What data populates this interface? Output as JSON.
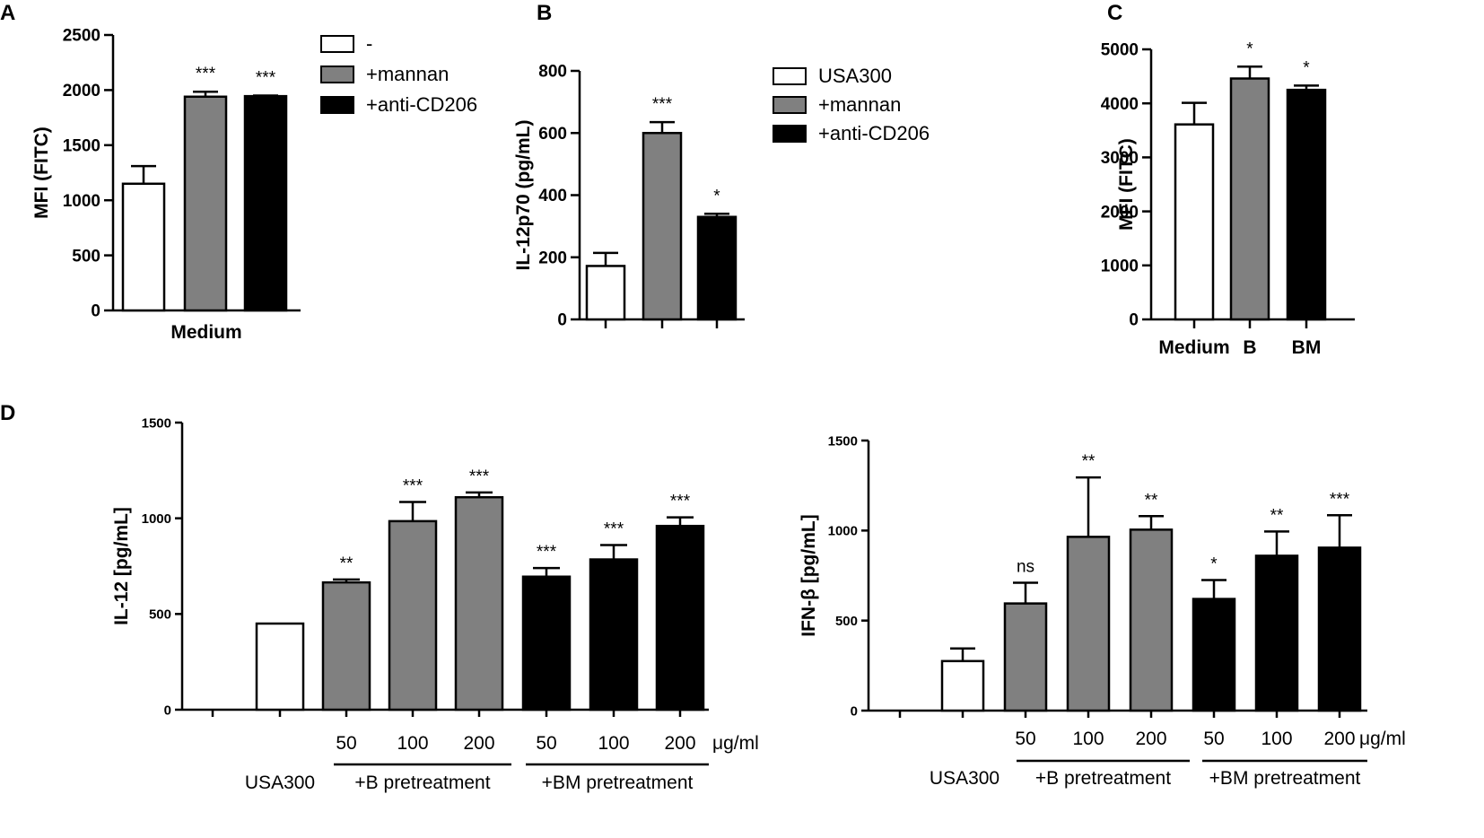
{
  "chart_data": [
    {
      "panel": "A",
      "type": "bar",
      "ylabel": "MFI (FITC)",
      "ylim": [
        0,
        2500
      ],
      "yticks": [
        0,
        500,
        1000,
        1500,
        2000,
        2500
      ],
      "categories": [
        "-",
        "+mannan",
        "+anti-CD206"
      ],
      "group_label": "Medium",
      "values": [
        1150,
        1940,
        1945
      ],
      "errors": [
        160,
        45,
        5
      ],
      "fills": [
        "#ffffff",
        "#808080",
        "#000000"
      ],
      "significance": [
        "",
        "***",
        "***"
      ],
      "legend": [
        "-",
        "+mannan",
        "+anti-CD206"
      ]
    },
    {
      "panel": "B",
      "type": "bar",
      "ylabel": "IL-12p70 (pg/mL)",
      "ylim": [
        0,
        800
      ],
      "yticks": [
        0,
        200,
        400,
        600,
        800
      ],
      "categories": [
        "USA300",
        "+mannan",
        "+anti-CD206"
      ],
      "values": [
        172,
        600,
        330
      ],
      "errors": [
        42,
        35,
        10
      ],
      "fills": [
        "#ffffff",
        "#808080",
        "#000000"
      ],
      "significance": [
        "",
        "***",
        "*"
      ],
      "legend": [
        "USA300",
        "+mannan",
        "+anti-CD206"
      ]
    },
    {
      "panel": "C",
      "type": "bar",
      "ylabel": "MFI (FITC)",
      "ylim": [
        0,
        5000
      ],
      "yticks": [
        0,
        1000,
        2000,
        3000,
        4000,
        5000
      ],
      "categories": [
        "Medium",
        "B",
        "BM"
      ],
      "values": [
        3610,
        4460,
        4250
      ],
      "errors": [
        400,
        220,
        80
      ],
      "fills": [
        "#ffffff",
        "#808080",
        "#000000"
      ],
      "significance": [
        "",
        "*",
        "*"
      ]
    },
    {
      "panel": "D-left",
      "type": "bar",
      "ylabel": "IL-12 [pg/mL]",
      "ylim": [
        0,
        1500
      ],
      "yticks": [
        0,
        500,
        1000,
        1500
      ],
      "dose_labels": [
        "",
        "",
        "50",
        "100",
        "200",
        "50",
        "100",
        "200"
      ],
      "unit": "μg/ml",
      "values": [
        0,
        450,
        665,
        985,
        1110,
        695,
        785,
        960
      ],
      "errors": [
        0,
        0,
        15,
        100,
        25,
        45,
        75,
        45
      ],
      "fills": [
        "none",
        "#ffffff",
        "#808080",
        "#808080",
        "#808080",
        "#000000",
        "#000000",
        "#000000"
      ],
      "significance": [
        "",
        "",
        "**",
        "***",
        "***",
        "***",
        "***",
        "***"
      ],
      "group_labels": [
        "USA300",
        "+B pretreatment",
        "+BM pretreatment"
      ]
    },
    {
      "panel": "D-right",
      "type": "bar",
      "ylabel": "IFN-β [pg/mL]",
      "ylim": [
        0,
        1500
      ],
      "yticks": [
        0,
        500,
        1000,
        1500
      ],
      "dose_labels": [
        "",
        "",
        "50",
        "100",
        "200",
        "50",
        "100",
        "200"
      ],
      "unit": "μg/ml",
      "values": [
        0,
        275,
        595,
        965,
        1005,
        620,
        860,
        905
      ],
      "errors": [
        0,
        70,
        115,
        330,
        75,
        105,
        135,
        180
      ],
      "fills": [
        "none",
        "#ffffff",
        "#808080",
        "#808080",
        "#808080",
        "#000000",
        "#000000",
        "#000000"
      ],
      "significance": [
        "",
        "",
        "ns",
        "**",
        "**",
        "*",
        "**",
        "***"
      ],
      "group_labels": [
        "USA300",
        "+B pretreatment",
        "+BM pretreatment"
      ]
    }
  ]
}
